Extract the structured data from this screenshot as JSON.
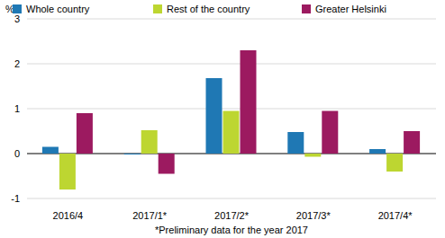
{
  "chart_data": {
    "type": "bar",
    "y_label": "%",
    "x_label": "*Preliminary data for the year 2017",
    "categories": [
      "2016/4",
      "2017/1*",
      "2017/2*",
      "2017/3*",
      "2017/4*"
    ],
    "series": [
      {
        "name": "Whole country",
        "color": "#1f78b4",
        "values": [
          0.15,
          -0.02,
          1.68,
          0.48,
          0.1
        ]
      },
      {
        "name": "Rest of the country",
        "color": "#bdd631",
        "values": [
          -0.8,
          0.52,
          0.95,
          -0.07,
          -0.4
        ]
      },
      {
        "name": "Greater Helsinki",
        "color": "#9c1a60",
        "values": [
          0.9,
          -0.45,
          2.3,
          0.95,
          0.5
        ]
      }
    ],
    "ylim": [
      -1,
      3
    ],
    "yticks": [
      -1,
      0,
      1,
      2,
      3
    ],
    "grid": true,
    "legend": "top"
  }
}
